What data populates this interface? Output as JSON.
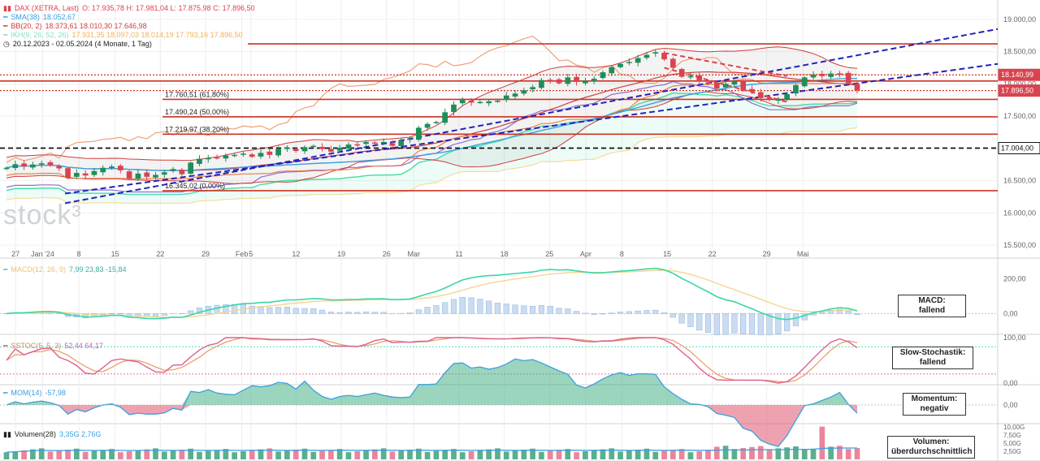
{
  "legend": {
    "instrument": "DAX (XETRA, Last)",
    "ohlc": "O: 17.935,78  H: 17.981,04  L: 17.875,98  C: 17.896,50",
    "sma_label": "SMA(38)",
    "sma_value": "18.052,67",
    "bb_label": "BB(20, 2)",
    "bb_values": "18.373,61  18.010,30  17.646,98",
    "ikh_label": "IKH(9, 26, 52, 26)",
    "ikh_values": "17.931,35  18.097,03  18.014,19  17.793,16  17.896,50",
    "range": "20.12.2023 - 02.05.2024  (4 Monate, 1 Tag)",
    "macd_label": "MACD(12, 26, 9)",
    "macd_values": "7,99  23,83  -15,84",
    "sstoc_label": "SSTOC(5, 5, 3)",
    "sstoc_values": "52,44  64,17",
    "mom_label": "MOM(14)",
    "mom_value": "-57,98",
    "vol_label": "Volumen(28)",
    "vol_values": "3,35G  2,76G"
  },
  "watermark": "stock³",
  "boxes": {
    "macd": "MACD:\nfallend",
    "sstoc": "Slow-Stochastik:\nfallend",
    "mom": "Momentum:\nnegativ",
    "vol": "Volumen:\nüberdurchschnittlich"
  },
  "colors": {
    "up": "#1e8e5a",
    "down": "#d9434f",
    "trend": "#2222bb",
    "fib": "#cc3322",
    "sma": "#3aa0e0",
    "bb": "#d03c3c",
    "kijun": "#e8834a",
    "chikou": "#f0a07a",
    "senkou_a": "#4bdfa8",
    "senkou_b": "#f5dc9a",
    "tenkan": "#8a6fd4",
    "macd": "#3ad6a8",
    "signal": "#f5d590",
    "stoch_k": "#e0608a",
    "stoch_d": "#e8a070"
  },
  "chart_data": [
    {
      "type": "candlestick",
      "price_axis": {
        "min": 15300,
        "max": 19300,
        "ticks": [
          "19.000,00",
          "18.500,00",
          "18.000,00",
          "17.500,00",
          "17.000,00",
          "16.500,00",
          "16.000,00",
          "15.500,00"
        ]
      },
      "x_labels": [
        "27",
        "Jan '24",
        "8",
        "15",
        "22",
        "29",
        "Feb",
        "5",
        "12",
        "19",
        "26",
        "Mar",
        "11",
        "18",
        "25",
        "Apr",
        "8",
        "15",
        "22",
        "29",
        "Mai"
      ],
      "closes": [
        16700,
        16755,
        16720,
        16750,
        16770,
        16740,
        16690,
        16540,
        16620,
        16580,
        16650,
        16700,
        16720,
        16660,
        16530,
        16610,
        16560,
        16590,
        16630,
        16680,
        16600,
        16780,
        16840,
        16850,
        16860,
        16890,
        16900,
        16920,
        16870,
        16930,
        16900,
        16990,
        17010,
        16960,
        17020,
        17040,
        16990,
        16950,
        17010,
        17060,
        17050,
        17100,
        17080,
        17100,
        17040,
        17120,
        17150,
        17320,
        17380,
        17410,
        17560,
        17680,
        17750,
        17710,
        17720,
        17730,
        17740,
        17820,
        17850,
        17900,
        17950,
        18060,
        18050,
        18010,
        18100,
        18030,
        18050,
        18080,
        18180,
        18260,
        18310,
        18340,
        18400,
        18450,
        18490,
        18380,
        18250,
        18110,
        18120,
        18040,
        18020,
        17930,
        18000,
        18040,
        17900,
        17880,
        17780,
        17760,
        17760,
        17840,
        17980,
        18100,
        18140,
        18120,
        18160,
        18150,
        18010,
        17896
      ],
      "trend_lines": [
        [
          16150,
          18850
        ],
        [
          16300,
          18310
        ]
      ],
      "horizontal_levels": [
        18620,
        18140,
        18045,
        17896,
        17760,
        17490,
        17220,
        17004,
        16345
      ],
      "fib_labels": [
        "17.760,51 (61,80%)",
        "17.490,24 (50,00%)",
        "17.219,97 (38,20%)",
        "16.345,02 (0,00%)"
      ],
      "price_tags": [
        {
          "label": "18.140,99",
          "value": 18140,
          "color": "#d9434f"
        },
        {
          "label": "17.896,50",
          "value": 17896,
          "color": "#d9434f"
        },
        {
          "label": "17.004,00",
          "value": 17004,
          "color": "#ffffff"
        }
      ]
    },
    {
      "type": "line",
      "name": "MACD",
      "ticks": [
        "200,00",
        "0,00"
      ],
      "range": [
        -120,
        310
      ]
    },
    {
      "type": "line",
      "name": "SSTOC",
      "ticks": [
        "100,00",
        "0,00"
      ],
      "range": [
        0,
        100
      ]
    },
    {
      "type": "area",
      "name": "MOM",
      "ticks": [
        "0,00"
      ],
      "range": [
        -300,
        300
      ]
    },
    {
      "type": "bar",
      "name": "Volumen",
      "ticks": [
        "10,00G",
        "7,50G",
        "5,00G",
        "2,50G"
      ],
      "range": [
        0,
        10
      ]
    }
  ]
}
